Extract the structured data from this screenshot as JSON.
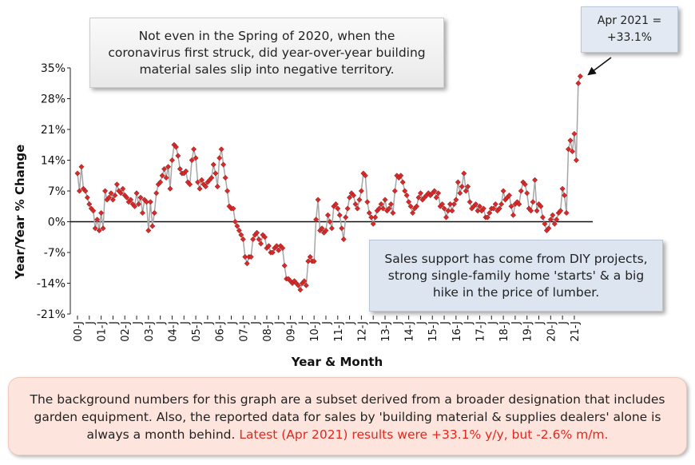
{
  "chart_data": {
    "type": "line",
    "y_label": "Year/Year % Change",
    "x_label": "Year & Month",
    "ylim": [
      -21,
      35
    ],
    "yticks": [
      {
        "value": -21,
        "label": "-21%"
      },
      {
        "value": -14,
        "label": "-14%"
      },
      {
        "value": -7,
        "label": "-7%"
      },
      {
        "value": 0,
        "label": "0%"
      },
      {
        "value": 7,
        "label": "7%"
      },
      {
        "value": 14,
        "label": "14%"
      },
      {
        "value": 21,
        "label": "21%"
      },
      {
        "value": 28,
        "label": "28%"
      },
      {
        "value": 35,
        "label": "35%"
      }
    ],
    "categories": [
      "00-J",
      null,
      null,
      null,
      null,
      null,
      "J",
      null,
      null,
      null,
      null,
      null,
      "01-J",
      null,
      null,
      null,
      null,
      null,
      "J",
      null,
      null,
      null,
      null,
      null,
      "02-J",
      null,
      null,
      null,
      null,
      null,
      "J",
      null,
      null,
      null,
      null,
      null,
      "03-J",
      null,
      null,
      null,
      null,
      null,
      "J",
      null,
      null,
      null,
      null,
      null,
      "04-J",
      null,
      null,
      null,
      null,
      null,
      "J",
      null,
      null,
      null,
      null,
      null,
      "05-J",
      null,
      null,
      null,
      null,
      null,
      "J",
      null,
      null,
      null,
      null,
      null,
      "06-J",
      null,
      null,
      null,
      null,
      null,
      "J",
      null,
      null,
      null,
      null,
      null,
      "07-J",
      null,
      null,
      null,
      null,
      null,
      "J",
      null,
      null,
      null,
      null,
      null,
      "08-J",
      null,
      null,
      null,
      null,
      null,
      "J",
      null,
      null,
      null,
      null,
      null,
      "09-J",
      null,
      null,
      null,
      null,
      null,
      "J",
      null,
      null,
      null,
      null,
      null,
      "10-J",
      null,
      null,
      null,
      null,
      null,
      "J",
      null,
      null,
      null,
      null,
      null,
      "11-J",
      null,
      null,
      null,
      null,
      null,
      "J",
      null,
      null,
      null,
      null,
      null,
      "12-J",
      null,
      null,
      null,
      null,
      null,
      "J",
      null,
      null,
      null,
      null,
      null,
      "13-J",
      null,
      null,
      null,
      null,
      null,
      "J",
      null,
      null,
      null,
      null,
      null,
      "14-J",
      null,
      null,
      null,
      null,
      null,
      "J",
      null,
      null,
      null,
      null,
      null,
      "15-J",
      null,
      null,
      null,
      null,
      null,
      "J",
      null,
      null,
      null,
      null,
      null,
      "16-J",
      null,
      null,
      null,
      null,
      null,
      "J",
      null,
      null,
      null,
      null,
      null,
      "17-J",
      null,
      null,
      null,
      null,
      null,
      "J",
      null,
      null,
      null,
      null,
      null,
      "18-J",
      null,
      null,
      null,
      null,
      null,
      "J",
      null,
      null,
      null,
      null,
      null,
      "19-J",
      null,
      null,
      null,
      null,
      null,
      "J",
      null,
      null,
      null,
      null,
      null,
      "20-J",
      null,
      null,
      null,
      null,
      null,
      "J",
      null,
      null,
      null,
      null,
      null,
      "21-J",
      null,
      null,
      null
    ],
    "series": [
      {
        "color": "#d62b2b",
        "line_color": "#a6a6a6",
        "values": [
          11,
          7,
          12.5,
          7.5,
          7,
          5.5,
          4,
          3,
          2.5,
          -1.5,
          0.5,
          -2,
          2,
          -1.5,
          7,
          5,
          5.5,
          6.5,
          5,
          6,
          8.5,
          7,
          6.5,
          7.5,
          6,
          5.5,
          4.5,
          5,
          4,
          3.5,
          6.5,
          4,
          5.5,
          2,
          5,
          4.5,
          -2,
          4.5,
          -1,
          2,
          6.5,
          8.5,
          9,
          10.5,
          12,
          10,
          12.5,
          7.5,
          14,
          17.5,
          17,
          15,
          12,
          11,
          11,
          11.5,
          9,
          8.5,
          14,
          16.5,
          14.5,
          9,
          7.5,
          9.5,
          8.5,
          8,
          9,
          9.5,
          10,
          13,
          11,
          8,
          14.5,
          16.5,
          13,
          10,
          7,
          3.5,
          3,
          3,
          0,
          -1,
          -2,
          -3,
          -4,
          -8,
          -9.5,
          -8,
          -8,
          -4,
          -3,
          -2.5,
          -4,
          -5,
          -3,
          -3.5,
          -6,
          -5.5,
          -7,
          -7,
          -6,
          -5.5,
          -6.5,
          -5.5,
          -6,
          -10,
          -13,
          -13,
          -13.5,
          -14,
          -13.5,
          -14,
          -14.5,
          -15.5,
          -14,
          -13.5,
          -14.5,
          -9,
          -8,
          -9,
          -9,
          0.5,
          5,
          -2,
          -1.5,
          -2.5,
          -2,
          1.5,
          0,
          -1.5,
          3.5,
          4,
          3,
          1.5,
          -1.5,
          -4,
          1,
          3,
          5.5,
          6.5,
          6,
          4,
          3,
          5,
          7,
          11,
          10.5,
          4.5,
          2,
          1,
          -0.5,
          1,
          2.5,
          3,
          4,
          3,
          5,
          2.5,
          3,
          4,
          2,
          7,
          10.5,
          10,
          10.5,
          9,
          7,
          6,
          4.5,
          3.5,
          2,
          3,
          3.5,
          5.5,
          6.5,
          5,
          5.5,
          6,
          6.5,
          6,
          6.5,
          7,
          5.5,
          6.5,
          3.5,
          4,
          3,
          1,
          2.5,
          4,
          2.5,
          4,
          5,
          9,
          6.5,
          8,
          11,
          7,
          8,
          4.5,
          3,
          3.5,
          4,
          2.5,
          3.5,
          2.5,
          3,
          1,
          1,
          2,
          3,
          3,
          4,
          2.5,
          3,
          4,
          7,
          5,
          5.5,
          6,
          3.5,
          1.5,
          4,
          4.5,
          4,
          7,
          9,
          8.5,
          6.5,
          3,
          2.5,
          4.5,
          9.5,
          2.5,
          4,
          3.5,
          1,
          -0.5,
          -2,
          -1.5,
          0.5,
          1.5,
          -0.5,
          0.5,
          2,
          2.5,
          7.5,
          6,
          2,
          16.5,
          18.5,
          16,
          20,
          14,
          31.5,
          33.1
        ]
      }
    ],
    "annotations": [
      "Not even in the Spring of 2020, when the coronavirus first struck, did year-over-year building material sales slip into negative territory.",
      "Sales support has come from DIY projects, strong single-family home 'starts' & a big hike in the price of lumber.",
      "Apr 2021 = +33.1%"
    ],
    "footnote": {
      "text": "The background numbers for this graph are a subset derived from a broader designation that includes garden equipment. Also, the reported data for sales by 'building material & supplies dealers' alone is always a month behind.",
      "highlight": "Latest (Apr 2021) results were +33.1% y/y, but -2.6% m/m."
    }
  }
}
